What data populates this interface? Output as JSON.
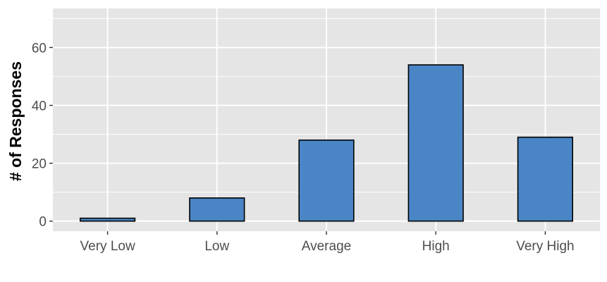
{
  "chart_data": {
    "type": "bar",
    "categories": [
      "Very Low",
      "Low",
      "Average",
      "High",
      "Very High"
    ],
    "values": [
      1,
      8,
      28,
      54,
      29
    ],
    "title": "",
    "xlabel": "",
    "ylabel": "# of Responses",
    "ylim": [
      -3.5,
      73.5
    ],
    "yticks": [
      0,
      20,
      40,
      60
    ],
    "grid": true,
    "legend": "none",
    "colors": {
      "panel": "#e5e5e5",
      "grid": "#ffffff",
      "bar_fill": "#4a86c5",
      "bar_stroke": "#000000",
      "tick_text": "#4d4d4d",
      "tick_mark": "#333333"
    }
  }
}
